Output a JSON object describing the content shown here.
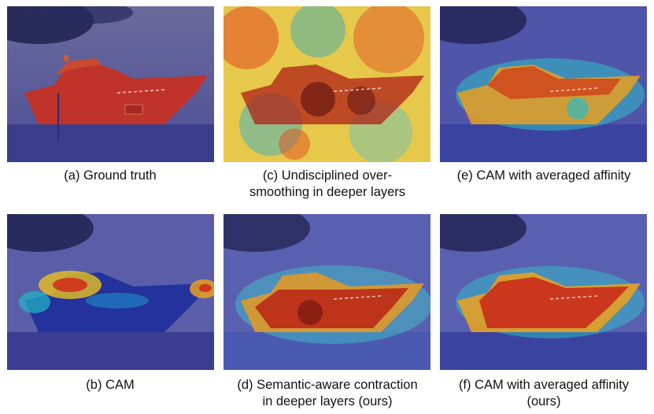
{
  "figure": {
    "panels": [
      {
        "id": "a",
        "caption_lines": [
          "(a) Ground truth"
        ],
        "overlay": "ground-truth"
      },
      {
        "id": "c",
        "caption_lines": [
          "(c) Undisciplined over-",
          "smoothing in deeper layers"
        ],
        "overlay": "noisy-heatmap"
      },
      {
        "id": "e",
        "caption_lines": [
          "(e) CAM with averaged affinity"
        ],
        "overlay": "heatmap"
      },
      {
        "id": "b",
        "caption_lines": [
          "(b) CAM"
        ],
        "overlay": "sparse-heatmap"
      },
      {
        "id": "d",
        "caption_lines": [
          "(d) Semantic-aware contraction",
          "in deeper layers (ours)"
        ],
        "overlay": "heatmap"
      },
      {
        "id": "f",
        "caption_lines": [
          "(f) CAM with averaged affinity",
          "(ours)"
        ],
        "overlay": "heatmap"
      }
    ],
    "colors": {
      "background_tint": "#3b3f9a",
      "ground_truth_mask": "#c0332a",
      "heat_high": "#c81e14",
      "heat_mid": "#f0a020",
      "heat_low": "#20b8c8"
    }
  }
}
